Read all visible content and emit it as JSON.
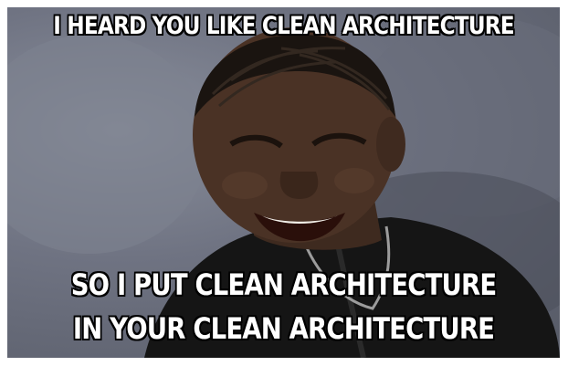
{
  "meme": {
    "top_text": "I HEARD YOU LIKE CLEAN ARCHITECTURE",
    "bottom_lines": [
      "SO I PUT CLEAN ARCHITECTURE",
      "IN YOUR CLEAN ARCHITECTURE"
    ]
  }
}
